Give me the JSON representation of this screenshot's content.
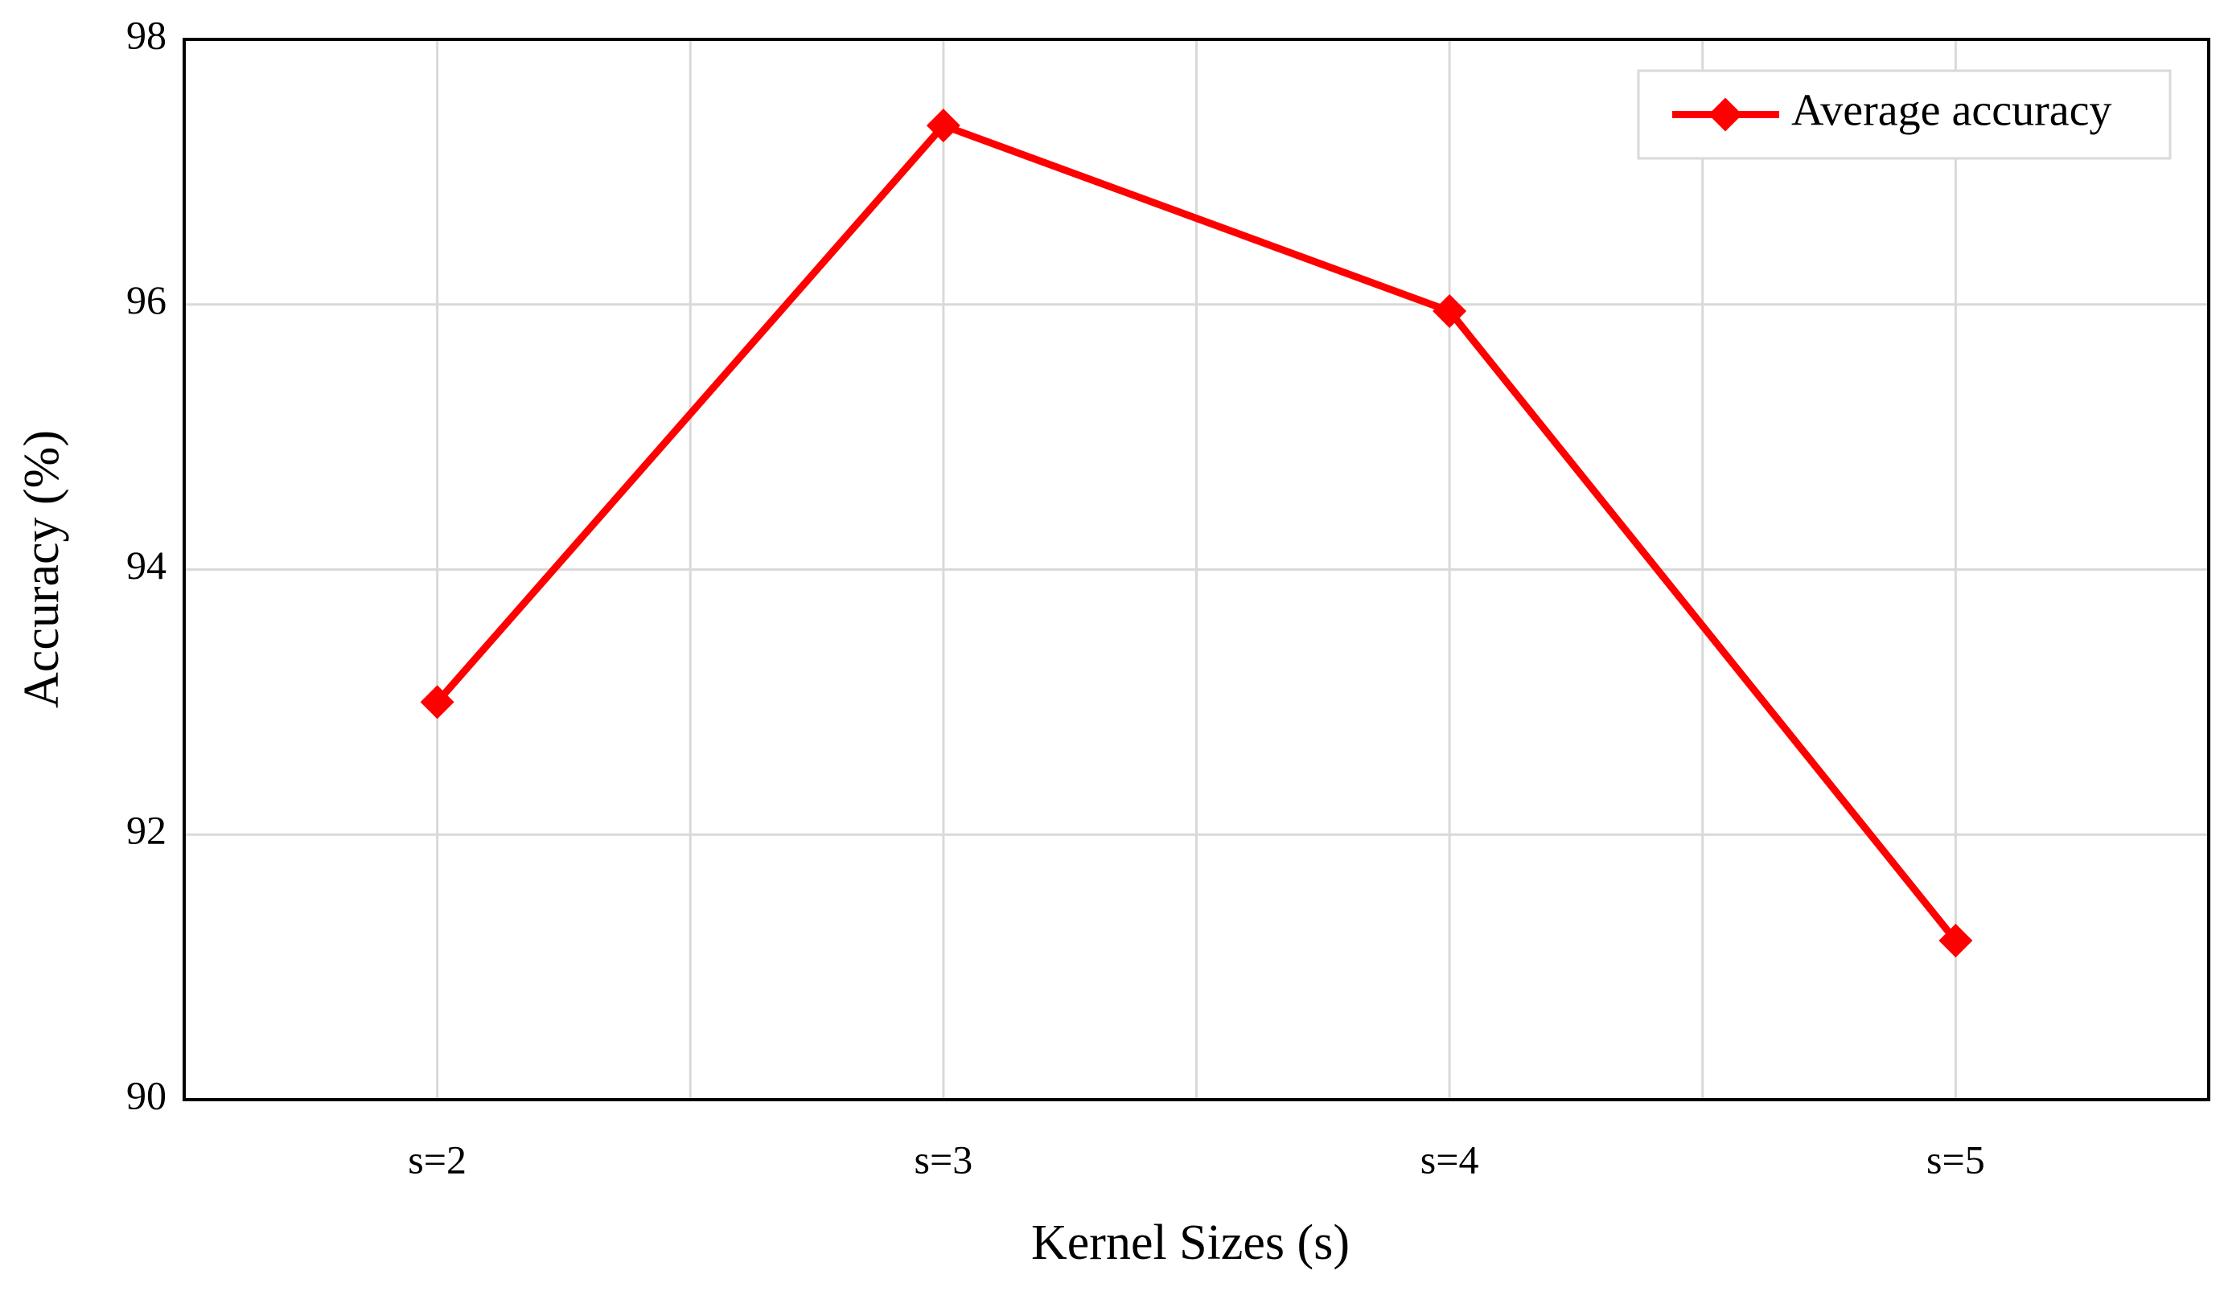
{
  "chart_data": {
    "type": "line",
    "x_label": "Kernel Sizes (s)",
    "y_label": "Accuracy (%)",
    "categories": [
      "s=2",
      "s=3",
      "s=4",
      "s=5"
    ],
    "series": [
      {
        "name": "Average accuracy",
        "color": "#ff0000",
        "values": [
          93.0,
          97.35,
          95.95,
          91.2
        ]
      }
    ],
    "ylim": [
      90,
      98
    ],
    "yticks": [
      90,
      92,
      94,
      96,
      98
    ],
    "grid": true,
    "legend": "upper right"
  }
}
